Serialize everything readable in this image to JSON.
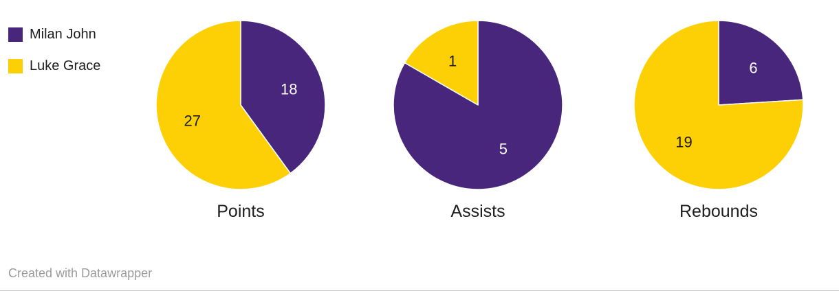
{
  "legend": {
    "items": [
      {
        "label": "Milan John",
        "color": "#47267b"
      },
      {
        "label": "Luke Grace",
        "color": "#fdd005"
      }
    ]
  },
  "chart_data": {
    "type": "pie",
    "series_colors": {
      "Milan John": "#47267b",
      "Luke Grace": "#fdd005"
    },
    "pies": [
      {
        "title": "Points",
        "slices": [
          {
            "name": "Milan John",
            "value": 18,
            "label_color": "#ffffff"
          },
          {
            "name": "Luke Grace",
            "value": 27,
            "label_color": "#1d1d1d"
          }
        ]
      },
      {
        "title": "Assists",
        "slices": [
          {
            "name": "Milan John",
            "value": 5,
            "label_color": "#ffffff"
          },
          {
            "name": "Luke Grace",
            "value": 1,
            "label_color": "#1d1d1d"
          }
        ]
      },
      {
        "title": "Rebounds",
        "slices": [
          {
            "name": "Milan John",
            "value": 6,
            "label_color": "#ffffff"
          },
          {
            "name": "Luke Grace",
            "value": 19,
            "label_color": "#1d1d1d"
          }
        ]
      }
    ]
  },
  "footer": {
    "credit": "Created with Datawrapper"
  }
}
